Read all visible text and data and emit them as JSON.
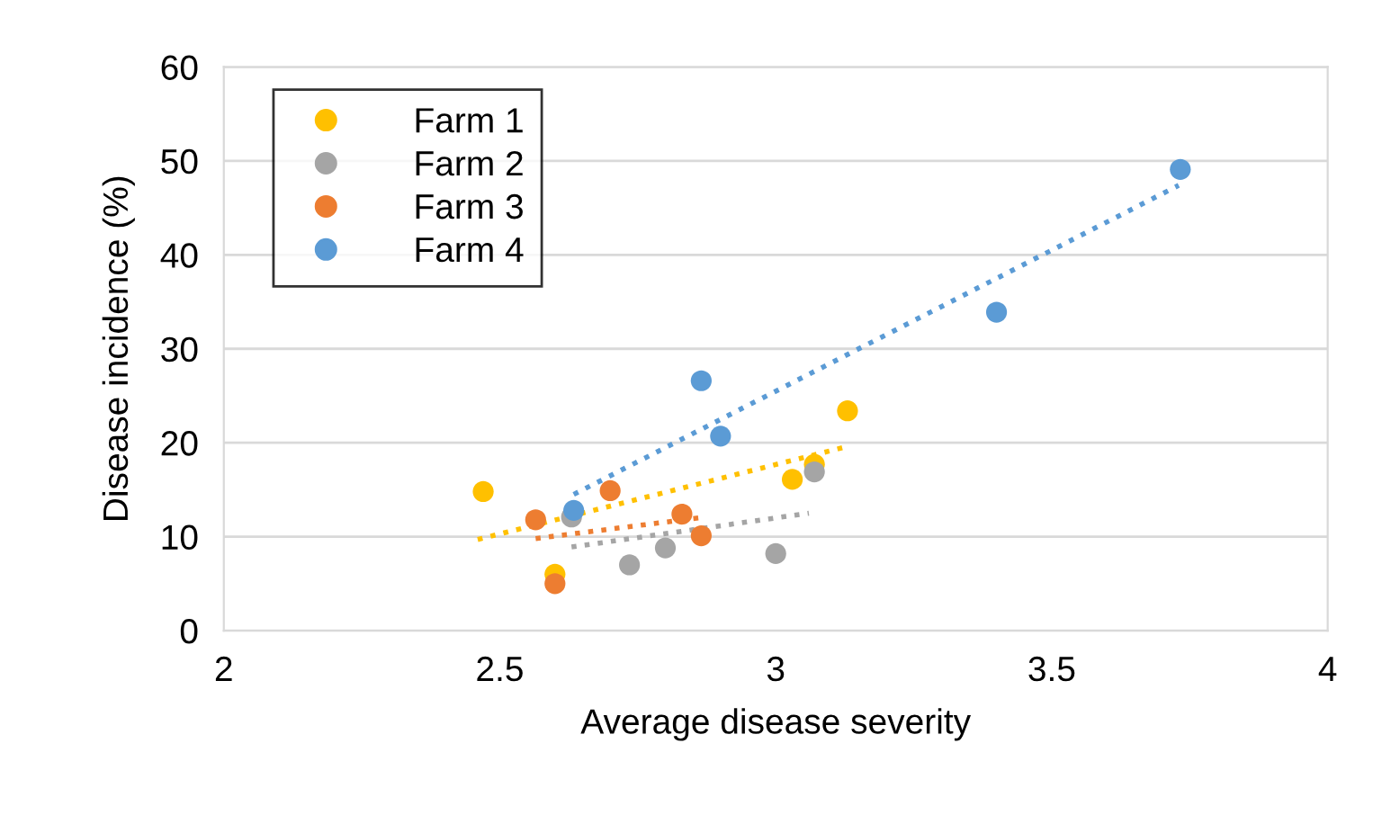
{
  "chart_data": {
    "type": "scatter",
    "xlabel": "Average disease severity",
    "ylabel": "Disease incidence (%)",
    "xlim": [
      2,
      4
    ],
    "xticks": [
      2,
      2.5,
      3,
      3.5,
      4
    ],
    "ylim": [
      0,
      60
    ],
    "yticks": [
      0,
      10,
      20,
      30,
      40,
      50,
      60
    ],
    "grid": "y",
    "legend": "top left",
    "marker": "circle",
    "series": [
      {
        "name": "Farm 1",
        "color": "#ffc000",
        "x": [
          2.47,
          2.6,
          3.03,
          3.13,
          3.07
        ],
        "values": [
          14.8,
          6,
          16.1,
          23.4,
          17.7
        ]
      },
      {
        "name": "Farm 2",
        "color": "#a5a5a5",
        "x": [
          2.63,
          2.735,
          2.8,
          3.0,
          3.07
        ],
        "values": [
          12.1,
          7,
          8.8,
          8.2,
          16.9
        ]
      },
      {
        "name": "Farm 3",
        "color": "#ed7d31",
        "x": [
          2.565,
          2.6,
          2.7,
          2.83,
          2.865
        ],
        "values": [
          11.8,
          5,
          14.9,
          12.4,
          10.1
        ]
      },
      {
        "name": "Farm 4",
        "color": "#5b9bd5",
        "x": [
          2.634,
          2.865,
          2.9,
          3.4,
          3.733
        ],
        "values": [
          12.8,
          26.6,
          20.7,
          33.9,
          49.1
        ]
      },
      {
        "type": "line",
        "marker": "none",
        "line_style": "dotted",
        "color": "#ffc000",
        "x": [
          2.46,
          3.13
        ],
        "values": [
          9.7,
          19.6
        ]
      },
      {
        "type": "line",
        "marker": "none",
        "line_style": "dotted",
        "color": "#a5a5a5",
        "x": [
          2.63,
          3.06
        ],
        "values": [
          8.9,
          12.5
        ]
      },
      {
        "type": "line",
        "marker": "none",
        "line_style": "dotted",
        "color": "#ed7d31",
        "x": [
          2.565,
          2.86
        ],
        "values": [
          9.8,
          12.0
        ]
      },
      {
        "type": "line",
        "marker": "none",
        "line_style": "dotted",
        "color": "#5b9bd5",
        "x": [
          2.634,
          3.73
        ],
        "values": [
          14.5,
          47.4
        ]
      }
    ]
  }
}
